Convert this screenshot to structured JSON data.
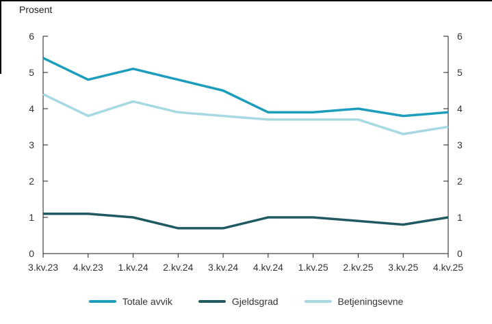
{
  "axis_title": "Prosent",
  "colors": {
    "axis": "#1a1a1a",
    "text": "#333333",
    "frame": "#000000"
  },
  "chart_data": {
    "type": "line",
    "title": "Prosent",
    "categories": [
      "3.kv.23",
      "4.kv.23",
      "1.kv.24",
      "2.kv.24",
      "3.kv.24",
      "4.kv.24",
      "1.kv.25",
      "2.kv.25",
      "3.kv.25",
      "4.kv.25"
    ],
    "series": [
      {
        "name": "Totale avvik",
        "color": "#1b9dbb",
        "values": [
          5.4,
          4.8,
          5.1,
          4.8,
          4.5,
          3.9,
          3.9,
          4.0,
          3.8,
          3.9
        ]
      },
      {
        "name": "Gjeldsgrad",
        "color": "#1f5962",
        "values": [
          1.1,
          1.1,
          1.0,
          0.7,
          0.7,
          1.0,
          1.0,
          0.9,
          0.8,
          1.0
        ]
      },
      {
        "name": "Betjeningsevne",
        "color": "#a6d9e2",
        "values": [
          4.4,
          3.8,
          4.2,
          3.9,
          3.8,
          3.7,
          3.7,
          3.7,
          3.3,
          3.5
        ]
      }
    ],
    "xlabel": "",
    "ylabel": "Prosent",
    "ylim": [
      0,
      6
    ],
    "ytick_interval": 1,
    "yticks": [
      0,
      1,
      2,
      3,
      4,
      5,
      6
    ],
    "y_axis_sides": "both",
    "grid": false,
    "legend_position": "bottom"
  }
}
